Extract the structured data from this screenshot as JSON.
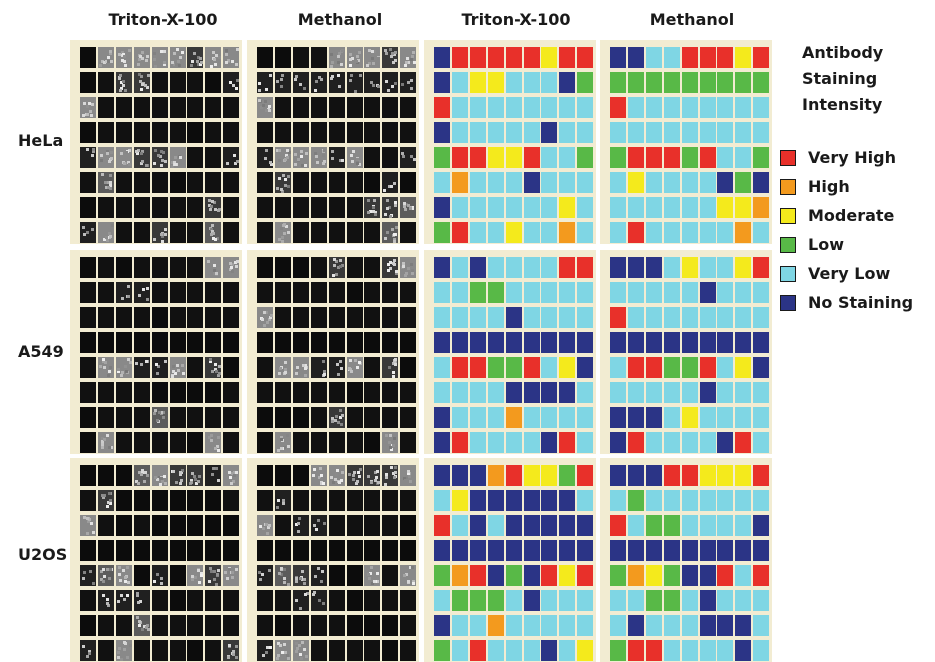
{
  "columns": [
    "Triton-X-100",
    "Methanol",
    "Triton-X-100",
    "Methanol"
  ],
  "rows": [
    "HeLa",
    "A549",
    "U2OS"
  ],
  "legend": {
    "title_lines": [
      "Antibody",
      "Staining",
      "Intensity"
    ],
    "items": [
      {
        "label": "Very High",
        "color": "#e8302a"
      },
      {
        "label": "High",
        "color": "#f39a1e"
      },
      {
        "label": "Moderate",
        "color": "#f4ea1c"
      },
      {
        "label": "Low",
        "color": "#58b947"
      },
      {
        "label": "Very Low",
        "color": "#7fd6e4"
      },
      {
        "label": "No Staining",
        "color": "#2b3486"
      }
    ]
  },
  "chart_data": {
    "type": "heatmap",
    "scale": [
      "No Staining",
      "Very Low",
      "Low",
      "Moderate",
      "High",
      "Very High"
    ],
    "panels": [
      {
        "cell_line": "HeLa",
        "method": "Triton-X-100",
        "grid": [
          [
            0,
            5,
            5,
            5,
            5,
            5,
            3,
            5,
            5
          ],
          [
            0,
            1,
            3,
            3,
            1,
            1,
            1,
            0,
            2
          ],
          [
            5,
            1,
            1,
            1,
            1,
            1,
            1,
            1,
            1
          ],
          [
            0,
            1,
            1,
            1,
            1,
            1,
            0,
            1,
            1
          ],
          [
            2,
            5,
            5,
            3,
            3,
            5,
            1,
            1,
            2
          ],
          [
            1,
            4,
            1,
            1,
            1,
            0,
            1,
            1,
            1
          ],
          [
            0,
            1,
            1,
            1,
            1,
            1,
            1,
            3,
            1
          ],
          [
            2,
            5,
            1,
            1,
            3,
            1,
            1,
            4,
            1
          ]
        ]
      },
      {
        "cell_line": "HeLa",
        "method": "Methanol",
        "grid": [
          [
            0,
            0,
            1,
            1,
            5,
            5,
            5,
            3,
            5
          ],
          [
            2,
            2,
            2,
            2,
            2,
            2,
            2,
            2,
            2
          ],
          [
            5,
            1,
            1,
            1,
            1,
            1,
            1,
            1,
            1
          ],
          [
            1,
            1,
            1,
            1,
            1,
            1,
            1,
            1,
            1
          ],
          [
            2,
            5,
            5,
            5,
            2,
            5,
            1,
            1,
            2
          ],
          [
            1,
            3,
            1,
            1,
            1,
            1,
            0,
            2,
            0
          ],
          [
            1,
            1,
            1,
            1,
            1,
            1,
            3,
            3,
            4
          ],
          [
            1,
            5,
            1,
            1,
            1,
            1,
            1,
            4,
            1
          ]
        ]
      },
      {
        "cell_line": "A549",
        "method": "Triton-X-100",
        "grid": [
          [
            0,
            1,
            0,
            1,
            1,
            1,
            1,
            5,
            5
          ],
          [
            1,
            1,
            2,
            2,
            1,
            1,
            1,
            1,
            1
          ],
          [
            1,
            1,
            1,
            1,
            0,
            1,
            1,
            1,
            1
          ],
          [
            0,
            0,
            0,
            0,
            0,
            0,
            0,
            0,
            0
          ],
          [
            1,
            5,
            5,
            2,
            2,
            5,
            1,
            3,
            0
          ],
          [
            1,
            1,
            1,
            1,
            0,
            0,
            0,
            0,
            1
          ],
          [
            0,
            1,
            1,
            1,
            4,
            1,
            1,
            1,
            1
          ],
          [
            0,
            5,
            1,
            1,
            1,
            1,
            0,
            5,
            1
          ]
        ]
      },
      {
        "cell_line": "A549",
        "method": "Methanol",
        "grid": [
          [
            0,
            0,
            0,
            1,
            3,
            1,
            1,
            3,
            5
          ],
          [
            1,
            1,
            1,
            1,
            1,
            0,
            1,
            1,
            1
          ],
          [
            5,
            1,
            1,
            1,
            1,
            1,
            1,
            1,
            1
          ],
          [
            0,
            0,
            0,
            0,
            0,
            0,
            0,
            0,
            0
          ],
          [
            1,
            5,
            5,
            2,
            2,
            5,
            1,
            3,
            0
          ],
          [
            1,
            1,
            1,
            1,
            1,
            0,
            1,
            1,
            1
          ],
          [
            0,
            0,
            0,
            1,
            3,
            1,
            1,
            1,
            1
          ],
          [
            0,
            5,
            1,
            1,
            1,
            1,
            0,
            5,
            1
          ]
        ]
      },
      {
        "cell_line": "U2OS",
        "method": "Triton-X-100",
        "grid": [
          [
            0,
            0,
            0,
            4,
            5,
            3,
            3,
            2,
            5
          ],
          [
            1,
            3,
            0,
            0,
            0,
            0,
            0,
            0,
            1
          ],
          [
            5,
            1,
            0,
            1,
            0,
            0,
            0,
            0,
            0
          ],
          [
            0,
            0,
            0,
            0,
            0,
            0,
            0,
            0,
            0
          ],
          [
            2,
            4,
            5,
            0,
            2,
            0,
            5,
            3,
            5
          ],
          [
            1,
            2,
            2,
            2,
            1,
            0,
            1,
            1,
            1
          ],
          [
            0,
            1,
            1,
            4,
            1,
            1,
            1,
            1,
            1
          ],
          [
            2,
            1,
            5,
            1,
            1,
            1,
            0,
            1,
            3
          ]
        ]
      },
      {
        "cell_line": "U2OS",
        "method": "Methanol",
        "grid": [
          [
            0,
            0,
            0,
            5,
            5,
            3,
            3,
            3,
            5
          ],
          [
            1,
            2,
            1,
            1,
            1,
            1,
            1,
            1,
            1
          ],
          [
            5,
            1,
            2,
            2,
            1,
            1,
            1,
            1,
            0
          ],
          [
            0,
            0,
            0,
            0,
            0,
            0,
            0,
            0,
            0
          ],
          [
            2,
            4,
            3,
            2,
            0,
            0,
            5,
            1,
            5
          ],
          [
            1,
            1,
            2,
            2,
            1,
            0,
            1,
            1,
            1
          ],
          [
            1,
            0,
            1,
            1,
            1,
            0,
            0,
            0,
            1
          ],
          [
            2,
            5,
            5,
            1,
            1,
            1,
            1,
            0,
            1
          ]
        ]
      }
    ]
  }
}
